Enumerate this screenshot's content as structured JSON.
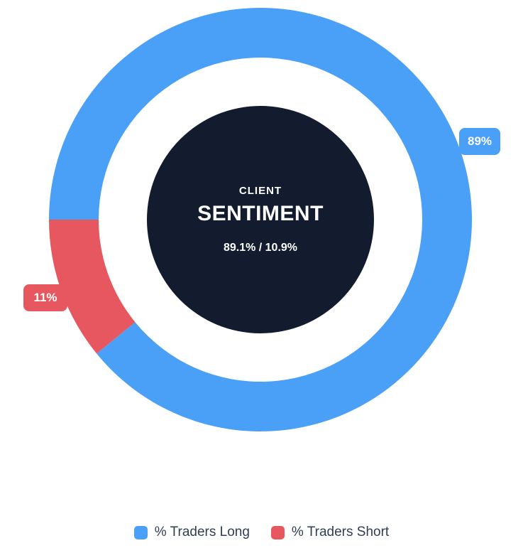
{
  "chart_data": {
    "type": "pie",
    "subtype": "doughnut",
    "title": "CLIENT SENTIMENT",
    "center_label": {
      "line1": "CLIENT",
      "line2": "SENTIMENT",
      "line3": "89.1% / 10.9%"
    },
    "rotation_deg_from_top": 270,
    "series": [
      {
        "label": "% Traders Long",
        "value": 89.1,
        "badge": "89%",
        "color": "#4AA0F7"
      },
      {
        "label": "% Traders Short",
        "value": 10.9,
        "badge": "11%",
        "color": "#E6575F"
      }
    ],
    "legend_position": "bottom",
    "colors": {
      "center_disc": "#131B2E",
      "center_text": "#FFFFFF",
      "legend_text": "#2F3E54",
      "background": "#FFFFFF"
    }
  }
}
